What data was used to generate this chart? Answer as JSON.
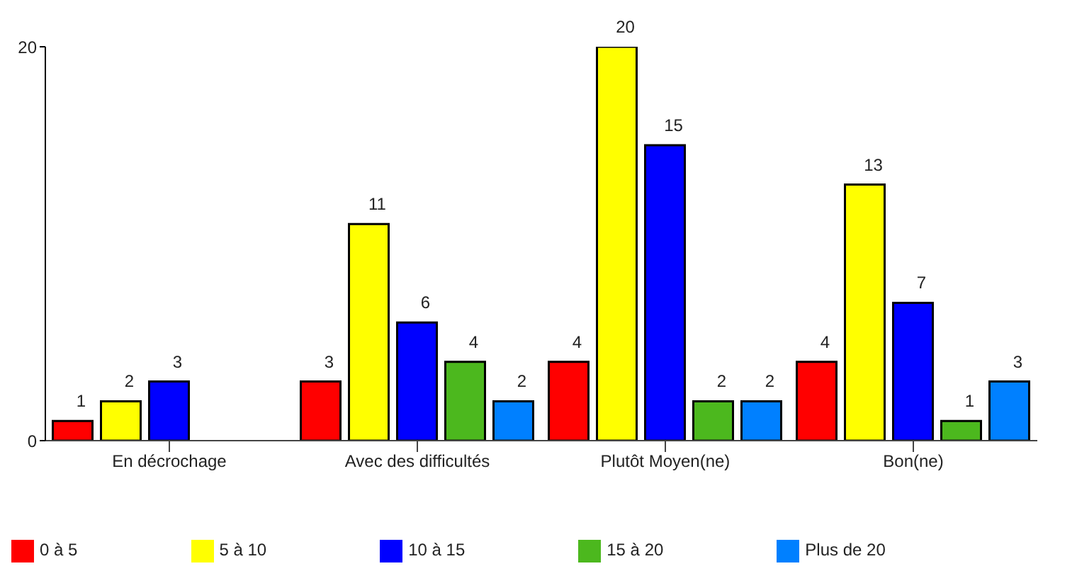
{
  "chart_data": {
    "type": "bar",
    "categories": [
      "En décrochage",
      "Avec des difficultés",
      "Plutôt Moyen(ne)",
      "Bon(ne)"
    ],
    "series": [
      {
        "name": "0 à 5",
        "color": "#ff0000",
        "values": [
          1,
          3,
          4,
          4
        ]
      },
      {
        "name": "5 à 10",
        "color": "#ffff00",
        "values": [
          2,
          11,
          20,
          13
        ]
      },
      {
        "name": "10 à 15",
        "color": "#0000ff",
        "values": [
          3,
          6,
          15,
          7
        ]
      },
      {
        "name": "15 à 20",
        "color": "#4cb81e",
        "values": [
          null,
          4,
          2,
          1
        ]
      },
      {
        "name": "Plus de 20",
        "color": "#0080ff",
        "values": [
          null,
          2,
          2,
          3
        ]
      }
    ],
    "ylim": [
      0,
      20
    ],
    "yticks": [
      0,
      20
    ],
    "data_labels": true,
    "legend": "bottom left",
    "grid": false
  }
}
